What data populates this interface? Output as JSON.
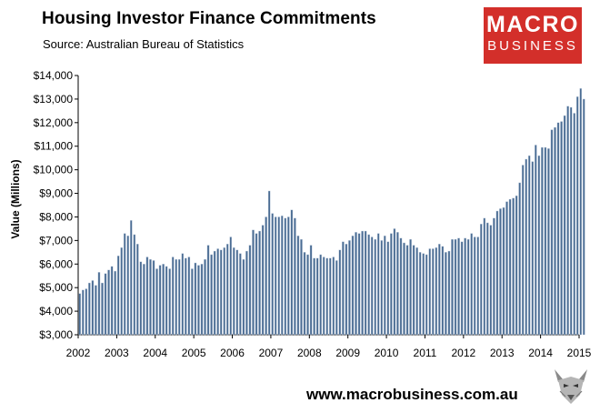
{
  "title": "Housing Investor Finance Commitments",
  "subtitle": "Source: Australian Bureau of Statistics",
  "logo": {
    "line1": "MACRO",
    "line2": "BUSINESS"
  },
  "footer": {
    "url": "www.macrobusiness.com.au"
  },
  "colors": {
    "bar": "#4a6c93",
    "bar_edge": "#c7d3e2",
    "logo_bg": "#d32f2a"
  },
  "chart_data": {
    "type": "bar",
    "title": "Housing Investor Finance Commitments",
    "ylabel": "Value (Millions)",
    "xlabel": "",
    "ylim": [
      3000,
      14000
    ],
    "y_ticks": [
      "$3,000",
      "$4,000",
      "$5,000",
      "$6,000",
      "$7,000",
      "$8,000",
      "$9,000",
      "$10,000",
      "$11,000",
      "$12,000",
      "$13,000",
      "$14,000"
    ],
    "x_ticks": [
      "2002",
      "2003",
      "2004",
      "2005",
      "2006",
      "2007",
      "2008",
      "2009",
      "2010",
      "2011",
      "2012",
      "2013",
      "2014",
      "2015"
    ],
    "x_start_year": 2002,
    "frequency": "monthly",
    "grid": false,
    "values": [
      4750,
      4900,
      4950,
      5200,
      5300,
      5100,
      5650,
      5200,
      5600,
      5750,
      5900,
      5700,
      6350,
      6700,
      7300,
      7200,
      7850,
      7250,
      6850,
      6100,
      6000,
      6300,
      6200,
      6150,
      5800,
      5950,
      6000,
      5900,
      5800,
      6300,
      6200,
      6200,
      6450,
      6250,
      6300,
      5800,
      6050,
      5950,
      6000,
      6200,
      6800,
      6400,
      6550,
      6650,
      6600,
      6700,
      6850,
      7150,
      6700,
      6600,
      6450,
      6200,
      6550,
      6800,
      7450,
      7300,
      7400,
      7650,
      8000,
      9100,
      8150,
      8000,
      8000,
      8050,
      7950,
      8000,
      8300,
      7950,
      7200,
      7050,
      6500,
      6400,
      6800,
      6250,
      6250,
      6400,
      6300,
      6250,
      6250,
      6300,
      6150,
      6600,
      6950,
      6850,
      7000,
      7200,
      7350,
      7300,
      7400,
      7400,
      7250,
      7150,
      7050,
      7300,
      7000,
      7200,
      6950,
      7300,
      7500,
      7350,
      7100,
      6900,
      6800,
      7050,
      6800,
      6700,
      6500,
      6450,
      6400,
      6650,
      6650,
      6700,
      6850,
      6750,
      6500,
      6550,
      7050,
      7050,
      7100,
      6950,
      7100,
      7050,
      7300,
      7150,
      7150,
      7700,
      7950,
      7750,
      7650,
      7950,
      8250,
      8350,
      8400,
      8650,
      8750,
      8800,
      8900,
      9450,
      10200,
      10450,
      10600,
      10350,
      11050,
      10600,
      10950,
      10950,
      10900,
      11700,
      11800,
      12000,
      12050,
      12300,
      12700,
      12650,
      12400,
      13100,
      13450,
      13000
    ]
  }
}
